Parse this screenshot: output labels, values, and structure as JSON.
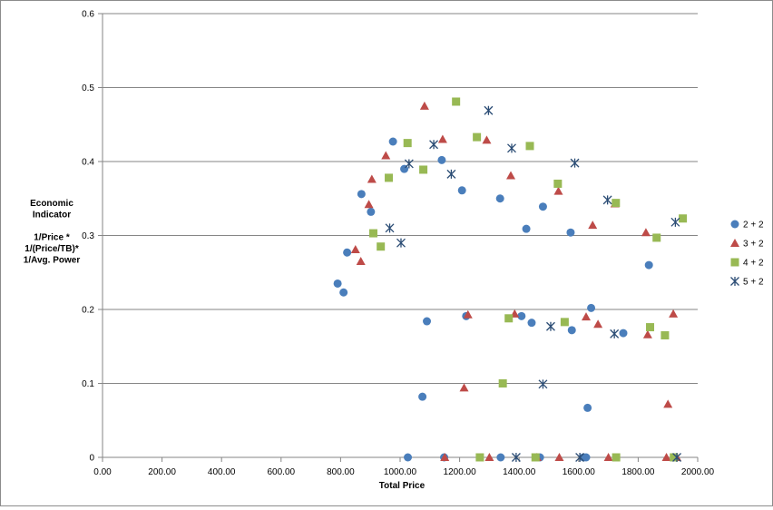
{
  "chart_data": {
    "type": "scatter",
    "title": "",
    "xlabel": "Total Price",
    "ylabel_lines": [
      "Economic",
      "Indicator",
      "",
      "1/Price *",
      "1/(Price/TB)*",
      "1/Avg. Power"
    ],
    "xlim": [
      0,
      2000
    ],
    "ylim": [
      0,
      0.6
    ],
    "x_ticks": [
      0,
      200,
      400,
      600,
      800,
      1000,
      1200,
      1400,
      1600,
      1800,
      2000
    ],
    "x_tick_labels": [
      "0.00",
      "200.00",
      "400.00",
      "600.00",
      "800.00",
      "1000.00",
      "1200.00",
      "1400.00",
      "1600.00",
      "1800.00",
      "2000.00"
    ],
    "y_ticks": [
      0,
      0.1,
      0.2,
      0.3,
      0.4,
      0.5,
      0.6
    ],
    "y_tick_labels": [
      "0",
      "0.1",
      "0.2",
      "0.3",
      "0.4",
      "0.5",
      "0.6"
    ],
    "grid": "horizontal",
    "legend": "right",
    "series": [
      {
        "name": "2 + 2",
        "marker": "circle",
        "color": "#4a7ebb",
        "points": [
          [
            790,
            0.235
          ],
          [
            810,
            0.223
          ],
          [
            822,
            0.277
          ],
          [
            870,
            0.356
          ],
          [
            902,
            0.332
          ],
          [
            976,
            0.427
          ],
          [
            1014,
            0.39
          ],
          [
            1026,
            0
          ],
          [
            1075,
            0.082
          ],
          [
            1090,
            0.184
          ],
          [
            1140,
            0.402
          ],
          [
            1148,
            0
          ],
          [
            1208,
            0.361
          ],
          [
            1222,
            0.191
          ],
          [
            1336,
            0.35
          ],
          [
            1338,
            0
          ],
          [
            1408,
            0.191
          ],
          [
            1424,
            0.309
          ],
          [
            1442,
            0.182
          ],
          [
            1470,
            0
          ],
          [
            1480,
            0.339
          ],
          [
            1573,
            0.304
          ],
          [
            1577,
            0.172
          ],
          [
            1616,
            0
          ],
          [
            1625,
            0
          ],
          [
            1630,
            0.067
          ],
          [
            1642,
            0.202
          ],
          [
            1750,
            0.168
          ],
          [
            1836,
            0.26
          ]
        ]
      },
      {
        "name": "3 + 2",
        "marker": "triangle",
        "color": "#be4b48",
        "points": [
          [
            850,
            0.281
          ],
          [
            868,
            0.265
          ],
          [
            895,
            0.342
          ],
          [
            905,
            0.376
          ],
          [
            952,
            0.408
          ],
          [
            1082,
            0.475
          ],
          [
            1143,
            0.43
          ],
          [
            1150,
            0
          ],
          [
            1215,
            0.094
          ],
          [
            1228,
            0.193
          ],
          [
            1291,
            0.429
          ],
          [
            1300,
            0
          ],
          [
            1372,
            0.381
          ],
          [
            1385,
            0.194
          ],
          [
            1460,
            0
          ],
          [
            1532,
            0.36
          ],
          [
            1535,
            0
          ],
          [
            1625,
            0.19
          ],
          [
            1647,
            0.314
          ],
          [
            1665,
            0.18
          ],
          [
            1700,
            0
          ],
          [
            1722,
            0.343
          ],
          [
            1826,
            0.304
          ],
          [
            1832,
            0.166
          ],
          [
            1895,
            0
          ],
          [
            1900,
            0.072
          ],
          [
            1918,
            0.194
          ],
          [
            1930,
            0
          ]
        ]
      },
      {
        "name": "4 + 2",
        "marker": "square",
        "color": "#98b954",
        "points": [
          [
            910,
            0.303
          ],
          [
            935,
            0.285
          ],
          [
            962,
            0.378
          ],
          [
            1025,
            0.425
          ],
          [
            1078,
            0.389
          ],
          [
            1188,
            0.481
          ],
          [
            1258,
            0.433
          ],
          [
            1268,
            0
          ],
          [
            1345,
            0.1
          ],
          [
            1365,
            0.188
          ],
          [
            1436,
            0.421
          ],
          [
            1455,
            0
          ],
          [
            1530,
            0.37
          ],
          [
            1553,
            0.183
          ],
          [
            1725,
            0.344
          ],
          [
            1726,
            0
          ],
          [
            1840,
            0.176
          ],
          [
            1862,
            0.297
          ],
          [
            1890,
            0.165
          ],
          [
            1920,
            0
          ],
          [
            1950,
            0.323
          ]
        ]
      },
      {
        "name": "5 + 2",
        "marker": "star",
        "color": "#2c4d75",
        "points": [
          [
            965,
            0.31
          ],
          [
            1003,
            0.29
          ],
          [
            1030,
            0.397
          ],
          [
            1113,
            0.423
          ],
          [
            1172,
            0.383
          ],
          [
            1297,
            0.469
          ],
          [
            1375,
            0.418
          ],
          [
            1390,
            0
          ],
          [
            1480,
            0.099
          ],
          [
            1506,
            0.177
          ],
          [
            1587,
            0.398
          ],
          [
            1604,
            0
          ],
          [
            1697,
            0.348
          ],
          [
            1720,
            0.167
          ],
          [
            1925,
            0.318
          ],
          [
            1930,
            0
          ]
        ]
      }
    ]
  }
}
